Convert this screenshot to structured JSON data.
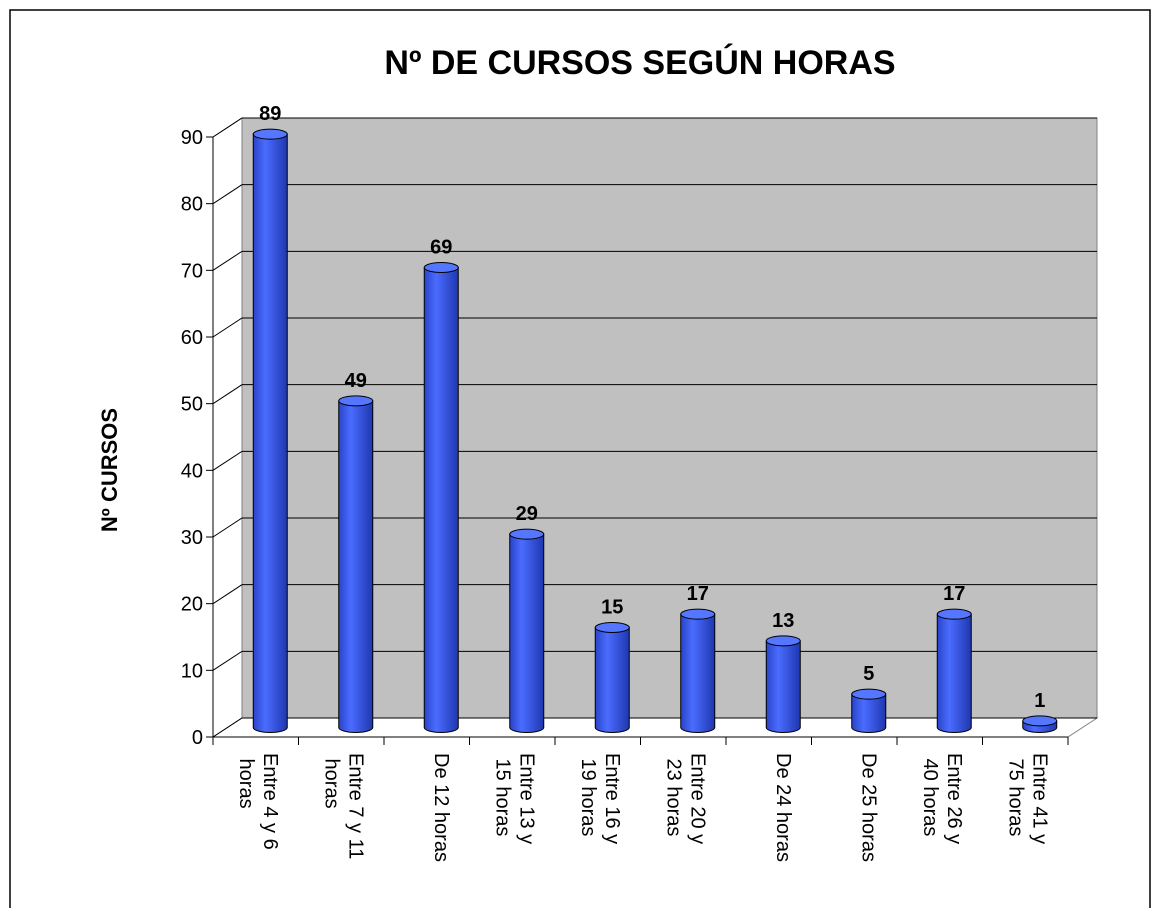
{
  "chart_data": {
    "type": "bar3d",
    "title": "Nº DE CURSOS SEGÚN HORAS",
    "y_label": "Nº CURSOS",
    "categories": [
      "Entre 4 y 6 horas",
      "Entre 7 y 11 horas",
      "De 12 horas",
      "Entre 13 y 15 horas",
      "Entre 16 y 19 horas",
      "Entre 20 y 23 horas",
      "De 24 horas",
      "De 25 horas",
      "Entre 26 y 40 horas",
      "Entre 41 y 75 horas"
    ],
    "values": [
      89,
      49,
      69,
      29,
      15,
      17,
      13,
      5,
      17,
      1
    ],
    "color": "#3355ee",
    "wall_color": "#c0c0c0",
    "ylim": [
      0,
      90
    ],
    "yticks": [
      0,
      10,
      20,
      30,
      40,
      50,
      60,
      70,
      80,
      90
    ],
    "grid": true
  }
}
